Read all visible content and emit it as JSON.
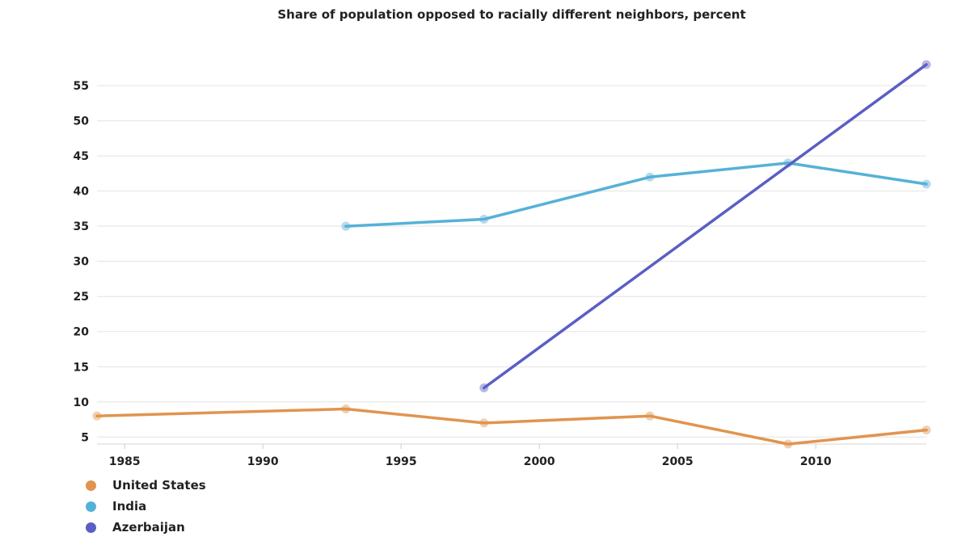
{
  "chart_data": {
    "type": "line",
    "title": "Share of population opposed to racially different neighbors, percent",
    "xlabel": "",
    "ylabel": "",
    "xlim": [
      1984,
      2014
    ],
    "ylim": [
      4,
      58
    ],
    "x_ticks": [
      1985,
      1990,
      1995,
      2000,
      2005,
      2010
    ],
    "y_ticks": [
      5,
      10,
      15,
      20,
      25,
      30,
      35,
      40,
      45,
      50,
      55
    ],
    "grid": true,
    "legend_position": "bottom-left",
    "series": [
      {
        "name": "United States",
        "color": "#e1944f",
        "x": [
          1984,
          1993,
          1998,
          2004,
          2009,
          2014
        ],
        "y": [
          8,
          9,
          7,
          8,
          4,
          6
        ]
      },
      {
        "name": "India",
        "color": "#56b1d8",
        "x": [
          1993,
          1998,
          2004,
          2009,
          2014
        ],
        "y": [
          35,
          36,
          42,
          44,
          41
        ]
      },
      {
        "name": "Azerbaijan",
        "color": "#5a5fc4",
        "x": [
          1998,
          2014
        ],
        "y": [
          12,
          58
        ]
      }
    ]
  }
}
